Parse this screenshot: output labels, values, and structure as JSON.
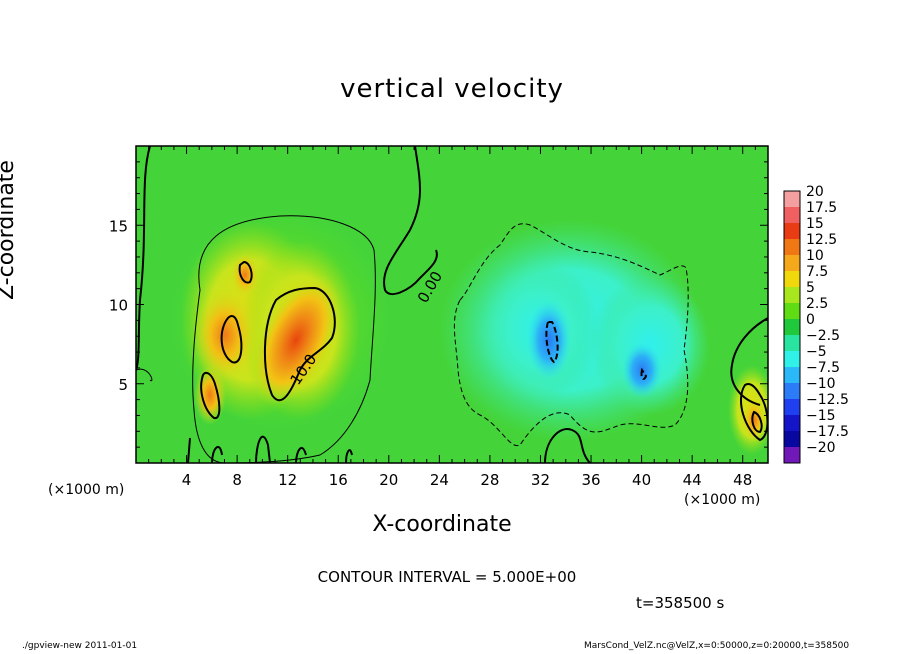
{
  "chart_data": {
    "type": "heatmap",
    "title": "vertical velocity",
    "xlabel": "X-coordinate",
    "ylabel": "Z-coordinate",
    "x_unit_left": "(×1000 m)",
    "x_unit_right": "(×1000 m)",
    "xlim": [
      0,
      50
    ],
    "ylim": [
      0,
      20
    ],
    "x_ticks": [
      4,
      8,
      12,
      16,
      20,
      24,
      28,
      32,
      36,
      40,
      44,
      48
    ],
    "y_ticks": [
      5,
      10,
      15
    ],
    "colorbar": {
      "levels": [
        20,
        17.5,
        15,
        12.5,
        10,
        7.5,
        5,
        2.5,
        0,
        -2.5,
        -5,
        -7.5,
        -10,
        -12.5,
        -15,
        -17.5,
        -20
      ],
      "labels": [
        "20",
        "17.5",
        "15",
        "12.5",
        "10",
        "7.5",
        "5",
        "2.5",
        "0",
        "−2.5",
        "−5",
        "−7.5",
        "−10",
        "−12.5",
        "−15",
        "−17.5",
        "−20"
      ],
      "colors": [
        "#f4a0a0",
        "#f06060",
        "#e83c14",
        "#f07814",
        "#f6a81c",
        "#f0d80c",
        "#a8e61e",
        "#60dc14",
        "#20c83c",
        "#28e4a0",
        "#30f0e8",
        "#2ab8f8",
        "#2c7cf8",
        "#2040f0",
        "#1414c8",
        "#0808a0",
        "#7018b8"
      ]
    },
    "contour_labels": [
      "10.0",
      "0.00"
    ],
    "annotations": {
      "contour_interval": "CONTOUR INTERVAL = 5.000E+00",
      "time": "t=358500 s"
    }
  },
  "footer": {
    "left": "./gpview-new   2011-01-01",
    "right": "MarsCond_VelZ.nc@VelZ,x=0:50000,z=0:20000,t=358500"
  }
}
